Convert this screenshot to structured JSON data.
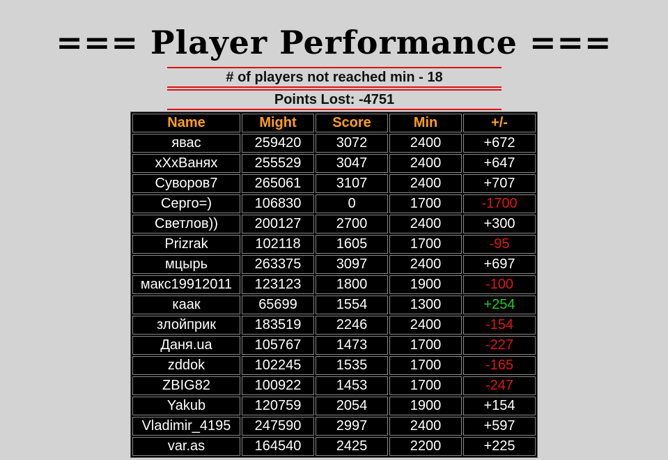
{
  "page": {
    "title": "=== Player Performance ===",
    "not_reached_text": "# of players not reached min - 18",
    "points_lost_text": "Points Lost: -4751"
  },
  "table": {
    "headers": [
      "Name",
      "Might",
      "Score",
      "Min",
      "+/-"
    ],
    "rows": [
      {
        "name": "явас",
        "might": "259420",
        "score": "3072",
        "min": "2400",
        "diff": "+672",
        "status": "pos"
      },
      {
        "name": "xXxВанях",
        "might": "255529",
        "score": "3047",
        "min": "2400",
        "diff": "+647",
        "status": "pos"
      },
      {
        "name": "Суворов7",
        "might": "265061",
        "score": "3107",
        "min": "2400",
        "diff": "+707",
        "status": "pos"
      },
      {
        "name": "Серго=)",
        "might": "106830",
        "score": "0",
        "min": "1700",
        "diff": "-1700",
        "status": "neg"
      },
      {
        "name": "Светлов))",
        "might": "200127",
        "score": "2700",
        "min": "2400",
        "diff": "+300",
        "status": "pos"
      },
      {
        "name": "Prizrak",
        "might": "102118",
        "score": "1605",
        "min": "1700",
        "diff": "-95",
        "status": "neg"
      },
      {
        "name": "мцырь",
        "might": "263375",
        "score": "3097",
        "min": "2400",
        "diff": "+697",
        "status": "pos"
      },
      {
        "name": "макс19912011",
        "might": "123123",
        "score": "1800",
        "min": "1900",
        "diff": "-100",
        "status": "neg"
      },
      {
        "name": "каак",
        "might": "65699",
        "score": "1554",
        "min": "1300",
        "diff": "+254",
        "status": "green"
      },
      {
        "name": "злойприк",
        "might": "183519",
        "score": "2246",
        "min": "2400",
        "diff": "-154",
        "status": "neg"
      },
      {
        "name": "Даня.ua",
        "might": "105767",
        "score": "1473",
        "min": "1700",
        "diff": "-227",
        "status": "neg"
      },
      {
        "name": "zddok",
        "might": "102245",
        "score": "1535",
        "min": "1700",
        "diff": "-165",
        "status": "neg"
      },
      {
        "name": "ZBIG82",
        "might": "100922",
        "score": "1453",
        "min": "1700",
        "diff": "-247",
        "status": "neg"
      },
      {
        "name": "Yakub",
        "might": "120759",
        "score": "2054",
        "min": "1900",
        "diff": "+154",
        "status": "pos"
      },
      {
        "name": "Vladimir_4195",
        "might": "247590",
        "score": "2997",
        "min": "2400",
        "diff": "+597",
        "status": "pos"
      },
      {
        "name": "var.as",
        "might": "164540",
        "score": "2425",
        "min": "2200",
        "diff": "+225",
        "status": "pos"
      }
    ]
  },
  "colors": {
    "background": "#d3d3d3",
    "header_text": "#ff9f1a",
    "negative": "#e01515",
    "positive_green": "#22cc22",
    "divider": "#e01010"
  }
}
